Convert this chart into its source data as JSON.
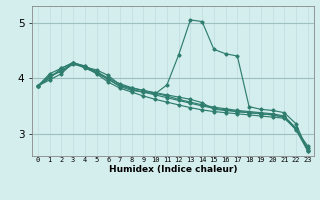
{
  "xlabel": "Humidex (Indice chaleur)",
  "bg_color": "#d4eeed",
  "line_color": "#2e7d6e",
  "grid_minor_color": "#c0dcdc",
  "grid_major_color": "#9cc0c0",
  "x_ticks": [
    0,
    1,
    2,
    3,
    4,
    5,
    6,
    7,
    8,
    9,
    10,
    11,
    12,
    13,
    14,
    15,
    16,
    17,
    18,
    19,
    20,
    21,
    22,
    23
  ],
  "ylim": [
    2.6,
    5.3
  ],
  "yticks": [
    3,
    4,
    5
  ],
  "series": [
    [
      3.86,
      3.97,
      4.08,
      4.28,
      4.2,
      4.08,
      3.93,
      3.82,
      3.75,
      3.68,
      3.62,
      3.57,
      3.52,
      3.47,
      3.43,
      3.4,
      3.38,
      3.36,
      3.34,
      3.32,
      3.3,
      3.28,
      3.08,
      2.78
    ],
    [
      3.86,
      4.0,
      4.18,
      4.28,
      4.22,
      4.1,
      3.98,
      3.87,
      3.8,
      3.75,
      3.7,
      3.65,
      3.6,
      3.55,
      3.5,
      3.46,
      3.43,
      3.4,
      3.38,
      3.36,
      3.34,
      3.3,
      3.1,
      2.74
    ],
    [
      3.86,
      4.02,
      4.14,
      4.27,
      4.22,
      4.12,
      4.0,
      3.9,
      3.83,
      3.78,
      3.73,
      3.68,
      3.62,
      3.57,
      3.52,
      3.48,
      3.45,
      3.42,
      3.4,
      3.38,
      3.36,
      3.32,
      3.1,
      2.71
    ],
    [
      3.86,
      4.05,
      4.12,
      4.25,
      4.2,
      4.15,
      4.05,
      3.88,
      3.82,
      3.78,
      3.74,
      3.7,
      3.66,
      3.62,
      3.56,
      3.44,
      3.42,
      3.4,
      3.38,
      3.36,
      3.34,
      3.3,
      3.07,
      2.69
    ],
    [
      3.86,
      4.08,
      4.18,
      4.28,
      4.18,
      4.1,
      3.98,
      3.85,
      3.78,
      3.75,
      3.72,
      3.88,
      4.42,
      5.05,
      5.02,
      4.52,
      4.44,
      4.4,
      3.49,
      3.44,
      3.42,
      3.38,
      3.18,
      2.69
    ]
  ]
}
